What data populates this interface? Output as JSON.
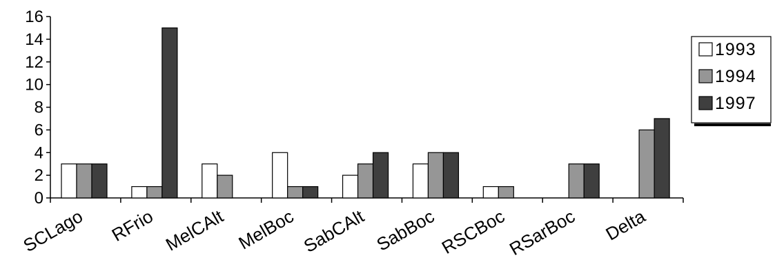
{
  "chart_data": {
    "type": "bar",
    "categories": [
      "SCLago",
      "RFrio",
      "MelCAlt",
      "MelBoc",
      "SabCAlt",
      "SabBoc",
      "RSCBoc",
      "RSarBoc",
      "Delta"
    ],
    "series": [
      {
        "name": "1993",
        "color": "#ffffff",
        "values": [
          3,
          1,
          3,
          4,
          2,
          3,
          1,
          0,
          0
        ]
      },
      {
        "name": "1994",
        "color": "#969696",
        "values": [
          3,
          1,
          2,
          1,
          3,
          4,
          1,
          3,
          6
        ]
      },
      {
        "name": "1997",
        "color": "#3f3f3f",
        "values": [
          3,
          15,
          0,
          1,
          4,
          4,
          0,
          3,
          7
        ]
      }
    ],
    "yticks": [
      "0",
      "2",
      "4",
      "6",
      "8",
      "10",
      "12",
      "14",
      "16"
    ],
    "ylim": [
      0,
      16
    ],
    "title": "",
    "xlabel": "",
    "ylabel": "",
    "grid": false,
    "legend_position": "right"
  }
}
